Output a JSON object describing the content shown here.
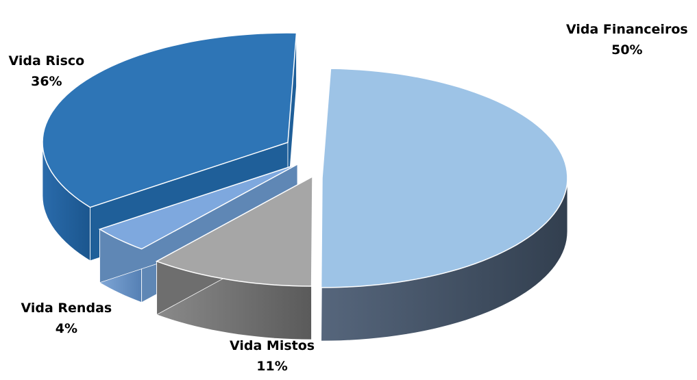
{
  "chart_data": {
    "type": "pie",
    "title": "",
    "style": "3d-exploded",
    "categories": [
      "Vida Financeiros",
      "Vida Mistos",
      "Vida Rendas",
      "Vida Risco"
    ],
    "values": [
      50,
      11,
      4,
      36
    ],
    "labels": [
      "50%",
      "11%",
      "4%",
      "36%"
    ],
    "colors": [
      "#9dc3e6",
      "#a6a6a6",
      "#7ea8de",
      "#2e75b6"
    ],
    "side_colors": [
      "#44546a",
      "#6e6e6e",
      "#5f87b5",
      "#1f5f99"
    ],
    "legend": "none"
  }
}
